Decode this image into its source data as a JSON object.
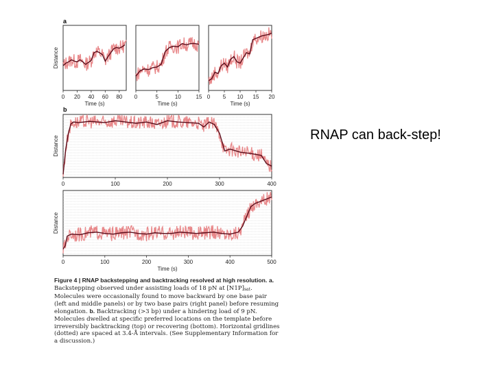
{
  "slide": {
    "text": "RNAP can back-step!"
  },
  "figure": {
    "panel_a_label": "a",
    "panel_b_label": "b",
    "caption": {
      "heading": "Figure 4 | RNAP backstepping and backtracking resolved at high resolution.",
      "a_label": "a.",
      "a_text_1": "Backstepping observed under assisting loads of 18 pN at [N1P]",
      "a_sub": "sat",
      "a_text_2": ". Molecules were occasionally found to move backward by one base pair (left and middle panels) or by two base pairs (right panel) before resuming elongation.",
      "b_label": "b.",
      "b_text": "Backtracking (>3 bp) under a hindering load of 9 pN. Molecules dwelled at specific preferred locations on the template before irreversibly backtracking (top) or recovering (bottom). Horizontal gridlines (dotted) are spaced at 3.4-Å intervals. (See Supplementary Information for a discussion.)"
    }
  },
  "chart_data": [
    {
      "id": "a1",
      "type": "line",
      "xlabel": "Time (s)",
      "ylabel": "Distance",
      "ticks": [
        "0",
        "20",
        "40",
        "60",
        "80"
      ],
      "xlim": [
        0,
        90
      ],
      "x": [
        0,
        4,
        8,
        12,
        16,
        20,
        24,
        28,
        32,
        36,
        40,
        44,
        48,
        52,
        56,
        60,
        64,
        68,
        72,
        76,
        80,
        84,
        88
      ],
      "values": [
        0.38,
        0.42,
        0.44,
        0.47,
        0.45,
        0.44,
        0.47,
        0.44,
        0.4,
        0.43,
        0.46,
        0.58,
        0.6,
        0.58,
        0.55,
        0.45,
        0.52,
        0.58,
        0.64,
        0.66,
        0.65,
        0.67,
        0.7
      ]
    },
    {
      "id": "a2",
      "type": "line",
      "xlabel": "Time (s)",
      "ylabel": "",
      "ticks": [
        "0",
        "5",
        "10",
        "15"
      ],
      "xlim": [
        0,
        15
      ],
      "x": [
        0,
        1,
        2,
        3,
        4,
        5,
        6,
        7,
        8,
        9,
        10,
        11,
        12,
        13,
        14,
        15
      ],
      "values": [
        0.22,
        0.3,
        0.33,
        0.32,
        0.35,
        0.36,
        0.4,
        0.6,
        0.66,
        0.68,
        0.67,
        0.72,
        0.7,
        0.72,
        0.72,
        0.71
      ]
    },
    {
      "id": "a3",
      "type": "line",
      "xlabel": "Time (s)",
      "ylabel": "",
      "ticks": [
        "0",
        "5",
        "10",
        "15",
        "20"
      ],
      "xlim": [
        0,
        20
      ],
      "x": [
        0,
        1,
        2,
        3,
        4,
        5,
        6,
        7,
        8,
        9,
        10,
        11,
        12,
        13,
        14,
        15,
        16,
        17,
        18,
        19,
        20
      ],
      "values": [
        0.15,
        0.18,
        0.28,
        0.26,
        0.38,
        0.42,
        0.36,
        0.48,
        0.52,
        0.44,
        0.42,
        0.5,
        0.58,
        0.56,
        0.78,
        0.8,
        0.82,
        0.84,
        0.85,
        0.86,
        0.88
      ]
    },
    {
      "id": "b1",
      "type": "line",
      "xlabel": "",
      "ylabel": "Distance",
      "ticks": [
        "0",
        "100",
        "200",
        "300",
        "400"
      ],
      "xlim": [
        0,
        400
      ],
      "x": [
        0,
        5,
        10,
        15,
        20,
        30,
        50,
        80,
        100,
        120,
        140,
        160,
        180,
        200,
        220,
        240,
        260,
        270,
        280,
        290,
        300,
        310,
        320,
        340,
        360,
        380,
        390,
        400
      ],
      "values": [
        0.05,
        0.45,
        0.7,
        0.85,
        0.88,
        0.87,
        0.89,
        0.87,
        0.9,
        0.88,
        0.86,
        0.88,
        0.84,
        0.9,
        0.88,
        0.87,
        0.86,
        0.8,
        0.88,
        0.84,
        0.7,
        0.42,
        0.45,
        0.4,
        0.38,
        0.35,
        0.22,
        0.18
      ]
    },
    {
      "id": "b2",
      "type": "line",
      "xlabel": "Time (s)",
      "ylabel": "Distance",
      "ticks": [
        "0",
        "100",
        "200",
        "300",
        "400",
        "500"
      ],
      "xlim": [
        0,
        500
      ],
      "x": [
        0,
        5,
        10,
        20,
        40,
        60,
        80,
        100,
        120,
        140,
        160,
        180,
        200,
        220,
        240,
        260,
        280,
        300,
        320,
        340,
        360,
        380,
        400,
        420,
        430,
        440,
        450,
        460,
        480,
        500
      ],
      "values": [
        0.1,
        0.15,
        0.3,
        0.33,
        0.32,
        0.35,
        0.36,
        0.34,
        0.33,
        0.35,
        0.36,
        0.34,
        0.33,
        0.35,
        0.34,
        0.34,
        0.36,
        0.35,
        0.34,
        0.35,
        0.36,
        0.34,
        0.33,
        0.36,
        0.45,
        0.6,
        0.75,
        0.8,
        0.85,
        0.9
      ]
    }
  ]
}
